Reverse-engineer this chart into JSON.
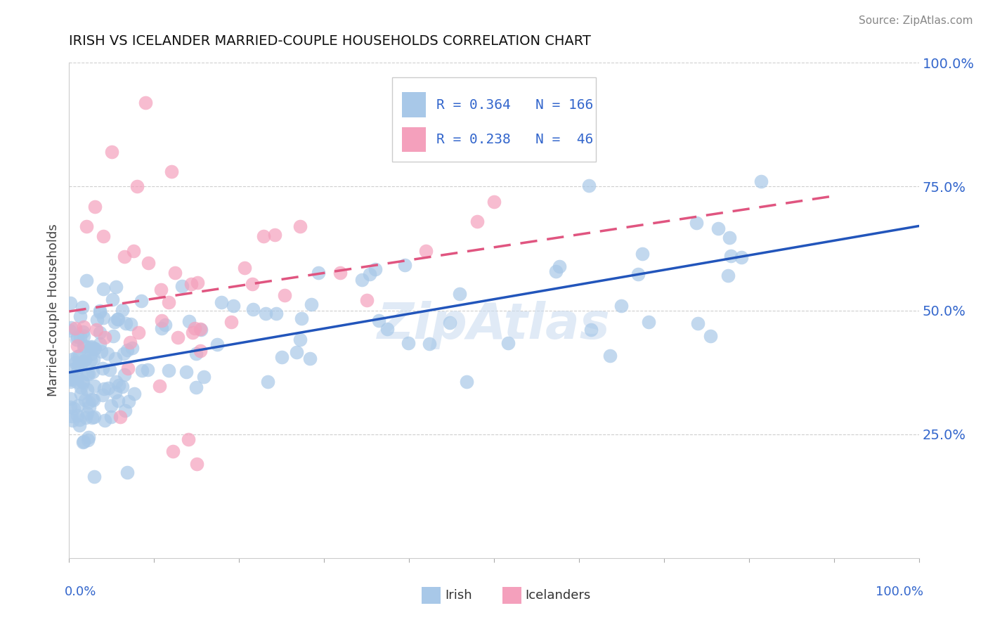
{
  "title": "IRISH VS ICELANDER MARRIED-COUPLE HOUSEHOLDS CORRELATION CHART",
  "source": "Source: ZipAtlas.com",
  "ylabel": "Married-couple Households",
  "xlim": [
    0,
    1
  ],
  "ylim": [
    0,
    1
  ],
  "irish_R": 0.364,
  "irish_N": 166,
  "icelander_R": 0.238,
  "icelander_N": 46,
  "irish_color": "#a8c8e8",
  "icelander_color": "#f4a0bc",
  "irish_line_color": "#2255bb",
  "icelander_line_color": "#e05580",
  "legend_text_color": "#3366cc",
  "right_yticks": [
    0.25,
    0.5,
    0.75,
    1.0
  ],
  "right_yticklabels": [
    "25.0%",
    "50.0%",
    "75.0%",
    "100.0%"
  ],
  "background_color": "#ffffff",
  "grid_color": "#bbbbbb",
  "watermark_color": "#ccddf0"
}
